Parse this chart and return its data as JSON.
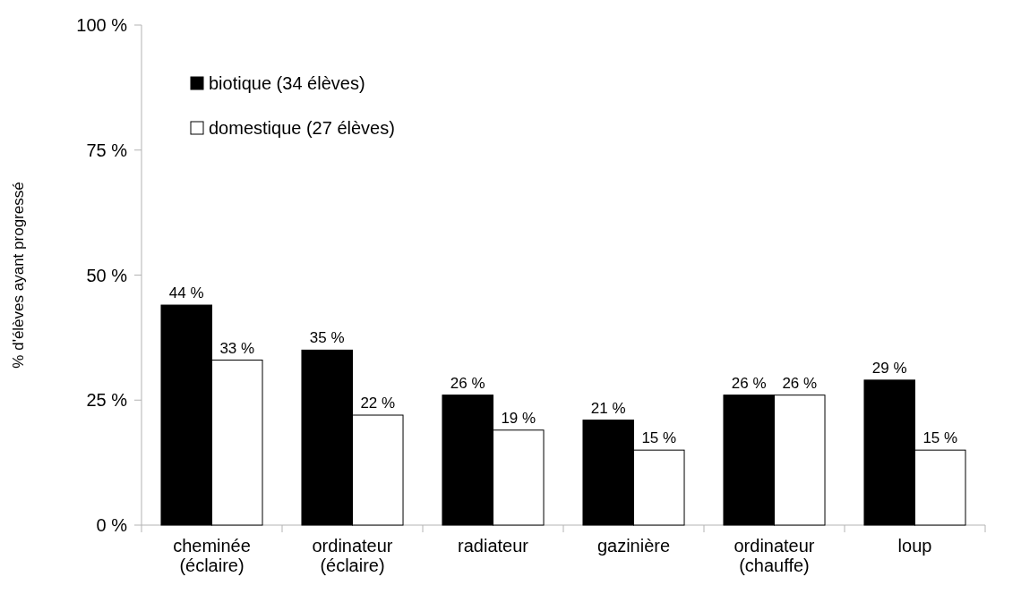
{
  "chart_data": {
    "type": "bar",
    "ylabel": "% d'élèves ayant progressé",
    "categories": [
      "cheminée\n(éclaire)",
      "ordinateur\n(éclaire)",
      "radiateur",
      "gazinière",
      "ordinateur\n(chauffe)",
      "loup"
    ],
    "series": [
      {
        "name": "biotique (34 élèves)",
        "color": "#000000",
        "values": [
          44,
          35,
          26,
          21,
          26,
          29
        ],
        "value_labels": [
          "44 %",
          "35 %",
          "26 %",
          "21 %",
          "26 %",
          "29 %"
        ]
      },
      {
        "name": "domestique (27 élèves)",
        "color": "#ffffff",
        "values": [
          33,
          22,
          19,
          15,
          26,
          15
        ],
        "value_labels": [
          "33 %",
          "22 %",
          "19 %",
          "15 %",
          "26 %",
          "15 %"
        ]
      }
    ],
    "ylim": [
      0,
      100
    ],
    "yticks": [
      {
        "value": 0,
        "label": "0 %"
      },
      {
        "value": 25,
        "label": "25 %"
      },
      {
        "value": 50,
        "label": "50 %"
      },
      {
        "value": 75,
        "label": "75 %"
      },
      {
        "value": 100,
        "label": "100 %"
      }
    ],
    "grid": false,
    "legend": "top left"
  }
}
